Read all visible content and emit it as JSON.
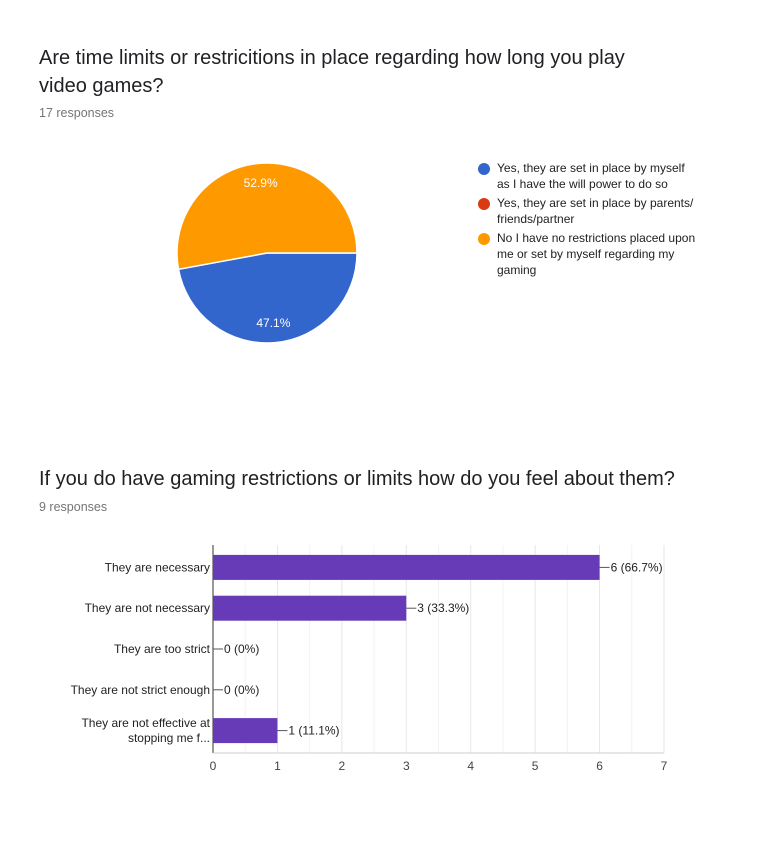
{
  "question1": {
    "title_line1": "Are time limits or restricitions in place regarding how long you play",
    "title_line2": "video games?",
    "responses": "17 responses"
  },
  "question2": {
    "title": "If you do have gaming restrictions or limits how do you feel about them?",
    "responses": "9 responses"
  },
  "chart_data": [
    {
      "type": "pie",
      "title": "Are time limits or restricitions in place regarding how long you play video games?",
      "slices": [
        {
          "label": "Yes, they are set in place by myself as I have the will power to do so",
          "value": 47.1,
          "display": "47.1%",
          "color": "#3366cc",
          "legend_lines": [
            "Yes, they are set in place by myself",
            "as I have the will power to do so"
          ]
        },
        {
          "label": "Yes, they are set in place by parents/ friends/partner",
          "value": 0,
          "display": "",
          "color": "#dc3912",
          "legend_lines": [
            "Yes, they are set in place by parents/",
            "friends/partner"
          ]
        },
        {
          "label": "No I have no restrictions placed upon me or set by myself regarding my gaming",
          "value": 52.9,
          "display": "52.9%",
          "color": "#ff9900",
          "legend_lines": [
            "No I have no restrictions placed upon",
            "me or set by myself regarding my",
            "gaming"
          ]
        }
      ],
      "legend_position": "right"
    },
    {
      "type": "bar",
      "orientation": "horizontal",
      "title": "If you do have gaming restrictions or limits how do you feel about them?",
      "categories": [
        [
          "They are necessary"
        ],
        [
          "They are not necessary"
        ],
        [
          "They are too strict"
        ],
        [
          "They are not strict enough"
        ],
        [
          "They are not effective at",
          "stopping me f..."
        ]
      ],
      "values": [
        6,
        3,
        0,
        0,
        1
      ],
      "value_labels": [
        "6 (66.7%)",
        "3 (33.3%)",
        "0 (0%)",
        "0 (0%)",
        "1 (11.1%)"
      ],
      "color": "#673ab7",
      "xlim": [
        0,
        7
      ],
      "xticks": [
        "0",
        "1",
        "2",
        "3",
        "4",
        "5",
        "6",
        "7"
      ],
      "grid": true
    }
  ]
}
